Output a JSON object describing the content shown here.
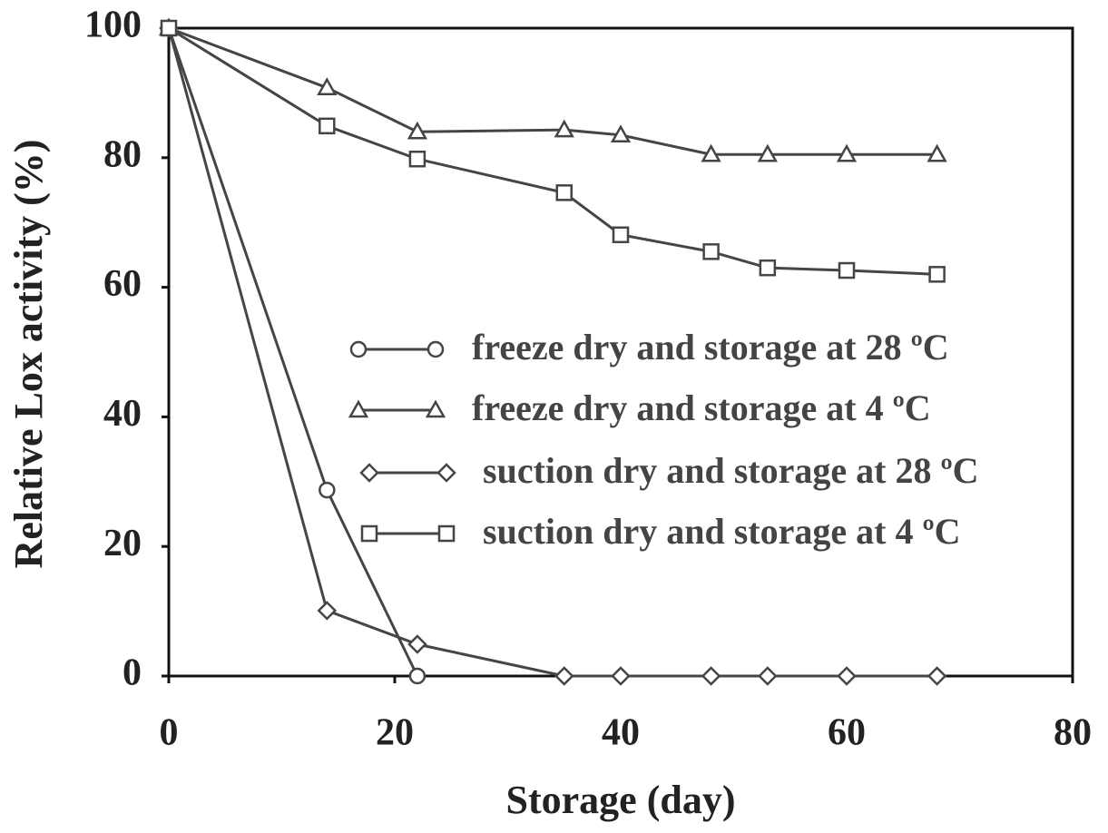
{
  "chart_data": {
    "type": "line",
    "x_label": "Storage (day)",
    "y_label": "Relative Lox activity (%)",
    "x": [
      0,
      14,
      22,
      35,
      40,
      48,
      53,
      60,
      68
    ],
    "series": [
      {
        "name": "freeze dry and storage at 28 ºC",
        "marker": "circle",
        "color": "#454545",
        "values": [
          100,
          28.7,
          0,
          null,
          null,
          null,
          null,
          null,
          null
        ]
      },
      {
        "name": "freeze dry and storage at 4 ºC",
        "marker": "triangle",
        "color": "#454545",
        "values": [
          100,
          90.8,
          84,
          84.3,
          83.5,
          80.5,
          80.5,
          80.5,
          80.5
        ]
      },
      {
        "name": "suction dry and storage at 28 ºC",
        "marker": "diamond",
        "color": "#454545",
        "values": [
          100,
          10.1,
          4.9,
          0,
          0,
          0,
          0,
          0,
          0
        ]
      },
      {
        "name": "suction dry and storage at 4 ºC",
        "marker": "square",
        "color": "#454545",
        "values": [
          100,
          84.9,
          79.8,
          74.6,
          68.1,
          65.5,
          63.0,
          62.6,
          62.0
        ]
      }
    ],
    "xlim": [
      0,
      80
    ],
    "xticks": [
      0,
      20,
      40,
      60,
      80
    ],
    "ylim": [
      0,
      100
    ],
    "yticks": [
      0,
      20,
      40,
      60,
      80,
      100
    ],
    "legend_position": "center"
  }
}
